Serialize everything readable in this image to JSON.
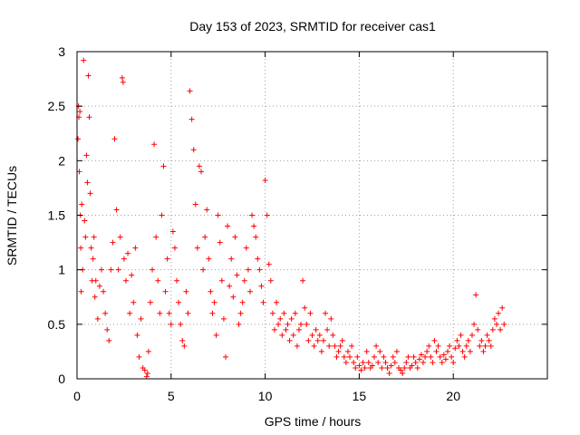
{
  "chart_data": {
    "type": "scatter",
    "title": "Day 153 of 2023, SRMTID for receiver cas1",
    "xlabel": "GPS time / hours",
    "ylabel": "SRMTID / TECUs",
    "xlim": [
      0,
      25
    ],
    "ylim": [
      0,
      3
    ],
    "xticks": [
      0,
      5,
      10,
      15,
      20
    ],
    "yticks": [
      0,
      0.5,
      1,
      1.5,
      2,
      2.5,
      3
    ],
    "xtick_labels": [
      "0",
      "5",
      "10",
      "15",
      "20"
    ],
    "ytick_labels": [
      "0",
      "0.5",
      "1",
      "1.5",
      "2",
      "2.5",
      "3"
    ],
    "grid": true,
    "marker": "+",
    "color": "#ff0000",
    "series": [
      {
        "name": "SRMTID",
        "x": [
          0.05,
          0.08,
          0.1,
          0.12,
          0.15,
          0.18,
          0.2,
          0.22,
          0.25,
          0.3,
          0.35,
          0.4,
          0.45,
          0.5,
          0.55,
          0.6,
          0.65,
          0.7,
          0.75,
          0.8,
          0.85,
          0.9,
          0.95,
          1.0,
          1.1,
          1.2,
          1.3,
          1.4,
          1.5,
          1.6,
          1.7,
          1.8,
          1.9,
          2.0,
          2.1,
          2.2,
          2.3,
          2.4,
          2.45,
          2.5,
          2.6,
          2.7,
          2.8,
          2.9,
          3.0,
          3.1,
          3.2,
          3.3,
          3.4,
          3.5,
          3.6,
          3.7,
          3.75,
          3.8,
          3.9,
          4.0,
          4.1,
          4.2,
          4.3,
          4.4,
          4.5,
          4.6,
          4.7,
          4.8,
          4.9,
          5.0,
          5.1,
          5.2,
          5.3,
          5.4,
          5.5,
          5.6,
          5.7,
          5.8,
          5.9,
          6.0,
          6.1,
          6.2,
          6.3,
          6.4,
          6.5,
          6.6,
          6.7,
          6.8,
          6.9,
          7.0,
          7.1,
          7.2,
          7.3,
          7.4,
          7.5,
          7.6,
          7.7,
          7.8,
          7.9,
          8.0,
          8.1,
          8.2,
          8.3,
          8.4,
          8.5,
          8.6,
          8.7,
          8.8,
          8.9,
          9.0,
          9.1,
          9.2,
          9.3,
          9.4,
          9.5,
          9.6,
          9.7,
          9.8,
          9.9,
          10.0,
          10.1,
          10.2,
          10.3,
          10.4,
          10.5,
          10.6,
          10.7,
          10.8,
          10.9,
          11.0,
          11.1,
          11.2,
          11.3,
          11.4,
          11.5,
          11.6,
          11.7,
          11.8,
          11.9,
          12.0,
          12.1,
          12.2,
          12.3,
          12.4,
          12.5,
          12.6,
          12.7,
          12.8,
          12.9,
          13.0,
          13.1,
          13.2,
          13.3,
          13.4,
          13.5,
          13.6,
          13.7,
          13.8,
          13.9,
          14.0,
          14.1,
          14.2,
          14.3,
          14.4,
          14.5,
          14.6,
          14.7,
          14.8,
          14.9,
          15.0,
          15.1,
          15.2,
          15.3,
          15.4,
          15.5,
          15.6,
          15.7,
          15.8,
          15.9,
          16.0,
          16.1,
          16.2,
          16.3,
          16.4,
          16.5,
          16.6,
          16.7,
          16.8,
          16.9,
          17.0,
          17.1,
          17.2,
          17.3,
          17.4,
          17.5,
          17.6,
          17.7,
          17.8,
          17.9,
          18.0,
          18.1,
          18.2,
          18.3,
          18.4,
          18.5,
          18.6,
          18.7,
          18.8,
          18.9,
          19.0,
          19.1,
          19.2,
          19.3,
          19.4,
          19.5,
          19.6,
          19.7,
          19.8,
          19.9,
          20.0,
          20.1,
          20.2,
          20.3,
          20.4,
          20.5,
          20.6,
          20.7,
          20.8,
          20.9,
          21.0,
          21.1,
          21.2,
          21.3,
          21.4,
          21.5,
          21.6,
          21.7,
          21.8,
          21.9,
          22.0,
          22.1,
          22.2,
          22.3,
          22.4,
          22.5,
          22.6,
          22.7
        ],
        "y": [
          2.2,
          2.5,
          2.4,
          1.9,
          2.45,
          1.5,
          1.2,
          0.8,
          1.6,
          1.0,
          2.92,
          1.45,
          1.3,
          2.05,
          1.8,
          2.78,
          2.4,
          1.7,
          1.2,
          0.9,
          1.1,
          1.3,
          0.75,
          0.9,
          0.55,
          0.85,
          1.0,
          0.8,
          0.6,
          0.45,
          0.35,
          1.0,
          1.25,
          2.2,
          1.55,
          1.0,
          1.3,
          2.76,
          2.72,
          1.1,
          0.9,
          1.15,
          0.6,
          0.95,
          0.7,
          1.2,
          0.4,
          0.2,
          0.55,
          0.1,
          0.08,
          0.02,
          0.05,
          0.25,
          0.7,
          1.0,
          2.15,
          1.3,
          0.9,
          0.6,
          1.5,
          1.95,
          0.8,
          1.1,
          0.6,
          0.5,
          1.35,
          1.2,
          0.9,
          0.7,
          0.5,
          0.35,
          0.3,
          0.8,
          0.6,
          2.64,
          2.38,
          2.1,
          1.6,
          1.2,
          1.95,
          1.9,
          1.0,
          1.3,
          1.55,
          1.1,
          0.8,
          0.6,
          0.7,
          0.4,
          1.5,
          1.25,
          0.9,
          0.55,
          0.2,
          1.4,
          0.85,
          1.1,
          0.75,
          1.3,
          0.95,
          0.5,
          0.6,
          0.7,
          0.9,
          1.2,
          1.0,
          0.8,
          1.5,
          1.4,
          1.3,
          1.1,
          1.0,
          0.85,
          0.7,
          1.82,
          1.5,
          1.05,
          0.9,
          0.6,
          0.45,
          0.7,
          0.5,
          0.55,
          0.4,
          0.6,
          0.45,
          0.5,
          0.35,
          0.55,
          0.4,
          0.6,
          0.3,
          0.45,
          0.5,
          0.9,
          0.65,
          0.5,
          0.35,
          0.6,
          0.4,
          0.3,
          0.45,
          0.35,
          0.4,
          0.25,
          0.35,
          0.6,
          0.45,
          0.3,
          0.55,
          0.4,
          0.3,
          0.2,
          0.25,
          0.3,
          0.35,
          0.2,
          0.15,
          0.25,
          0.2,
          0.3,
          0.15,
          0.1,
          0.2,
          0.12,
          0.08,
          0.15,
          0.1,
          0.25,
          0.15,
          0.1,
          0.12,
          0.2,
          0.3,
          0.15,
          0.25,
          0.1,
          0.2,
          0.15,
          0.1,
          0.05,
          0.12,
          0.2,
          0.15,
          0.25,
          0.1,
          0.08,
          0.05,
          0.1,
          0.15,
          0.2,
          0.1,
          0.12,
          0.2,
          0.15,
          0.1,
          0.18,
          0.22,
          0.15,
          0.2,
          0.25,
          0.3,
          0.2,
          0.15,
          0.35,
          0.25,
          0.3,
          0.2,
          0.15,
          0.22,
          0.18,
          0.25,
          0.3,
          0.2,
          0.15,
          0.28,
          0.35,
          0.3,
          0.4,
          0.25,
          0.2,
          0.3,
          0.35,
          0.25,
          0.4,
          0.5,
          0.77,
          0.45,
          0.3,
          0.35,
          0.25,
          0.3,
          0.4,
          0.35,
          0.3,
          0.45,
          0.55,
          0.5,
          0.6,
          0.45,
          0.65,
          0.5
        ]
      }
    ]
  }
}
